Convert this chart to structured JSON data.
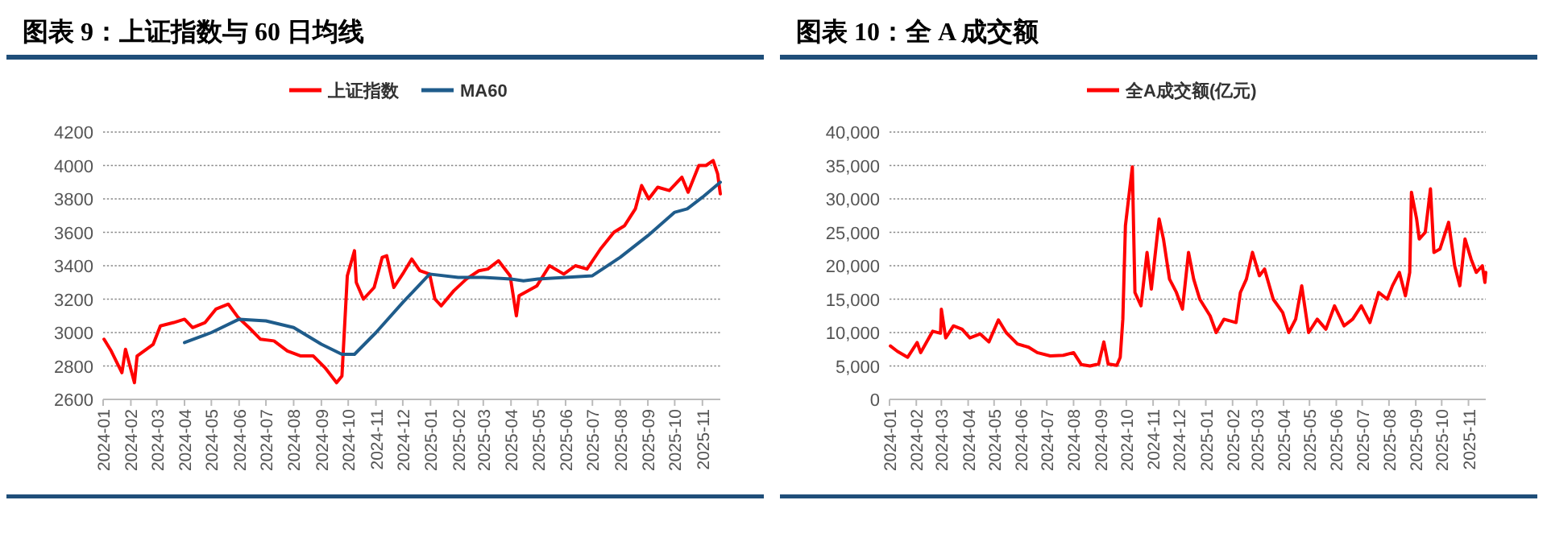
{
  "chart_data": [
    {
      "type": "line",
      "title": "图表 9：上证指数与 60 日均线",
      "legend": "top",
      "grid": "y",
      "xlim": [
        "2024-01-01",
        "2025-11-21"
      ],
      "ylim": [
        2600,
        4200
      ],
      "yticks": [
        2600,
        2800,
        3000,
        3200,
        3400,
        3600,
        3800,
        4000,
        4200
      ],
      "xticks": [
        "2024-01",
        "2024-02",
        "2024-03",
        "2024-04",
        "2024-05",
        "2024-06",
        "2024-07",
        "2024-08",
        "2024-09",
        "2024-10",
        "2024-11",
        "2024-12",
        "2025-01",
        "2025-02",
        "2025-03",
        "2025-04",
        "2025-05",
        "2025-06",
        "2025-07",
        "2025-08",
        "2025-09",
        "2025-10",
        "2025-11"
      ],
      "series": [
        {
          "name": "上证指数",
          "color": "#ff0000",
          "x": [
            "2024-01-02",
            "2024-01-10",
            "2024-01-22",
            "2024-01-26",
            "2024-02-05",
            "2024-02-08",
            "2024-02-26",
            "2024-03-05",
            "2024-03-20",
            "2024-04-01",
            "2024-04-10",
            "2024-04-24",
            "2024-05-06",
            "2024-05-20",
            "2024-05-31",
            "2024-06-12",
            "2024-06-25",
            "2024-07-10",
            "2024-07-25",
            "2024-08-09",
            "2024-08-23",
            "2024-09-05",
            "2024-09-18",
            "2024-09-24",
            "2024-09-30",
            "2024-10-08",
            "2024-10-10",
            "2024-10-18",
            "2024-10-30",
            "2024-11-08",
            "2024-11-13",
            "2024-11-21",
            "2024-12-02",
            "2024-12-11",
            "2024-12-20",
            "2024-12-31",
            "2025-01-06",
            "2025-01-13",
            "2025-01-27",
            "2025-02-10",
            "2025-02-24",
            "2025-03-06",
            "2025-03-18",
            "2025-03-31",
            "2025-04-07",
            "2025-04-10",
            "2025-04-30",
            "2025-05-14",
            "2025-05-30",
            "2025-06-12",
            "2025-06-25",
            "2025-07-10",
            "2025-07-25",
            "2025-08-06",
            "2025-08-18",
            "2025-08-25",
            "2025-09-02",
            "2025-09-12",
            "2025-09-25",
            "2025-10-09",
            "2025-10-16",
            "2025-10-28",
            "2025-11-05",
            "2025-11-13",
            "2025-11-18",
            "2025-11-21"
          ],
          "values": [
            2960,
            2890,
            2760,
            2900,
            2700,
            2860,
            2930,
            3040,
            3060,
            3080,
            3030,
            3060,
            3140,
            3170,
            3090,
            3030,
            2960,
            2950,
            2890,
            2860,
            2860,
            2790,
            2700,
            2740,
            3340,
            3490,
            3300,
            3200,
            3270,
            3450,
            3460,
            3270,
            3360,
            3440,
            3370,
            3350,
            3200,
            3160,
            3250,
            3320,
            3370,
            3380,
            3430,
            3340,
            3100,
            3220,
            3280,
            3400,
            3350,
            3400,
            3380,
            3500,
            3600,
            3640,
            3740,
            3880,
            3800,
            3870,
            3850,
            3930,
            3840,
            4000,
            4000,
            4030,
            3950,
            3830
          ]
        },
        {
          "name": "MA60",
          "color": "#1f5c8b",
          "x": [
            "2024-04-01",
            "2024-05-01",
            "2024-06-01",
            "2024-07-01",
            "2024-08-01",
            "2024-09-01",
            "2024-09-24",
            "2024-10-08",
            "2024-11-01",
            "2024-12-01",
            "2024-12-31",
            "2025-02-01",
            "2025-03-01",
            "2025-04-01",
            "2025-04-15",
            "2025-05-01",
            "2025-06-01",
            "2025-07-01",
            "2025-08-01",
            "2025-09-01",
            "2025-10-01",
            "2025-10-15",
            "2025-11-01",
            "2025-11-21"
          ],
          "values": [
            2940,
            3000,
            3080,
            3070,
            3030,
            2930,
            2870,
            2870,
            3000,
            3180,
            3350,
            3330,
            3330,
            3320,
            3310,
            3320,
            3330,
            3340,
            3450,
            3580,
            3720,
            3740,
            3810,
            3900
          ]
        }
      ]
    },
    {
      "type": "line",
      "title": "图表 10：全 A 成交额",
      "legend": "top",
      "grid": "y",
      "xlim": [
        "2024-01-01",
        "2025-11-21"
      ],
      "ylim": [
        0,
        40000
      ],
      "yticks": [
        0,
        {
          "value": 5000,
          "label": "5,000"
        },
        {
          "value": 10000,
          "label": "10,000"
        },
        {
          "value": 15000,
          "label": "15,000"
        },
        {
          "value": 20000,
          "label": "20,000"
        },
        {
          "value": 25000,
          "label": "25,000"
        },
        {
          "value": 30000,
          "label": "30,000"
        },
        {
          "value": 35000,
          "label": "35,000"
        },
        {
          "value": 40000,
          "label": "40,000"
        }
      ],
      "xticks": [
        "2024-01",
        "2024-02",
        "2024-03",
        "2024-04",
        "2024-05",
        "2024-06",
        "2024-07",
        "2024-08",
        "2024-09",
        "2024-10",
        "2024-11",
        "2024-12",
        "2025-01",
        "2025-02",
        "2025-03",
        "2025-04",
        "2025-05",
        "2025-06",
        "2025-07",
        "2025-08",
        "2025-09",
        "2025-10",
        "2025-11"
      ],
      "series": [
        {
          "name": "全A成交额(亿元)",
          "color": "#ff0000",
          "x": [
            "2024-01-02",
            "2024-01-10",
            "2024-01-22",
            "2024-02-02",
            "2024-02-06",
            "2024-02-20",
            "2024-02-29",
            "2024-03-01",
            "2024-03-06",
            "2024-03-15",
            "2024-03-25",
            "2024-04-03",
            "2024-04-15",
            "2024-04-25",
            "2024-05-06",
            "2024-05-15",
            "2024-05-28",
            "2024-06-10",
            "2024-06-20",
            "2024-07-05",
            "2024-07-20",
            "2024-08-01",
            "2024-08-10",
            "2024-08-20",
            "2024-08-30",
            "2024-09-05",
            "2024-09-10",
            "2024-09-20",
            "2024-09-24",
            "2024-09-27",
            "2024-09-30",
            "2024-10-08",
            "2024-10-11",
            "2024-10-18",
            "2024-10-25",
            "2024-10-30",
            "2024-11-08",
            "2024-11-13",
            "2024-11-20",
            "2024-11-28",
            "2024-12-05",
            "2024-12-12",
            "2024-12-18",
            "2024-12-25",
            "2025-01-06",
            "2025-01-13",
            "2025-01-22",
            "2025-02-05",
            "2025-02-10",
            "2025-02-17",
            "2025-02-24",
            "2025-03-04",
            "2025-03-10",
            "2025-03-20",
            "2025-03-31",
            "2025-04-07",
            "2025-04-15",
            "2025-04-22",
            "2025-04-30",
            "2025-05-10",
            "2025-05-20",
            "2025-05-30",
            "2025-06-10",
            "2025-06-20",
            "2025-06-30",
            "2025-07-10",
            "2025-07-20",
            "2025-07-30",
            "2025-08-05",
            "2025-08-13",
            "2025-08-20",
            "2025-08-25",
            "2025-08-27",
            "2025-09-02",
            "2025-09-05",
            "2025-09-12",
            "2025-09-18",
            "2025-09-22",
            "2025-09-29",
            "2025-10-09",
            "2025-10-16",
            "2025-10-22",
            "2025-10-28",
            "2025-11-04",
            "2025-11-10",
            "2025-11-17",
            "2025-11-20",
            "2025-11-21"
          ],
          "values": [
            8000,
            7200,
            6300,
            8500,
            7000,
            10200,
            9900,
            13500,
            9200,
            11000,
            10500,
            9200,
            9800,
            8600,
            11900,
            10000,
            8300,
            7800,
            7000,
            6500,
            6600,
            7000,
            5200,
            5000,
            5300,
            8600,
            5300,
            5100,
            6300,
            12000,
            26000,
            34800,
            16000,
            14000,
            22000,
            16500,
            27000,
            24000,
            18000,
            16000,
            13500,
            22000,
            18000,
            15000,
            12500,
            10000,
            12000,
            11500,
            16000,
            18000,
            22000,
            18500,
            19500,
            15000,
            13000,
            10000,
            12000,
            17000,
            10000,
            12000,
            10500,
            14000,
            11000,
            12000,
            14000,
            11500,
            16000,
            15000,
            17000,
            19000,
            15500,
            19000,
            31000,
            27000,
            24000,
            25000,
            31500,
            22000,
            22500,
            26500,
            20000,
            17000,
            24000,
            21000,
            19000,
            20000,
            17500,
            19000
          ]
        }
      ]
    }
  ]
}
